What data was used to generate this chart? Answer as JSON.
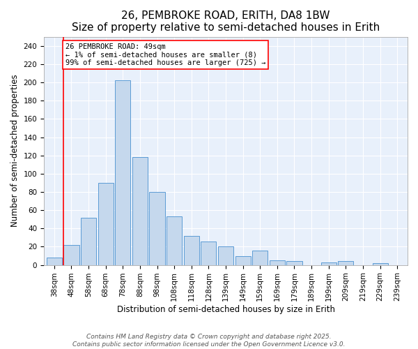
{
  "title": "26, PEMBROKE ROAD, ERITH, DA8 1BW",
  "subtitle": "Size of property relative to semi-detached houses in Erith",
  "xlabel": "Distribution of semi-detached houses by size in Erith",
  "ylabel": "Number of semi-detached properties",
  "categories": [
    "38sqm",
    "48sqm",
    "58sqm",
    "68sqm",
    "78sqm",
    "88sqm",
    "98sqm",
    "108sqm",
    "118sqm",
    "128sqm",
    "139sqm",
    "149sqm",
    "159sqm",
    "169sqm",
    "179sqm",
    "189sqm",
    "199sqm",
    "209sqm",
    "219sqm",
    "229sqm",
    "239sqm"
  ],
  "values": [
    8,
    22,
    52,
    90,
    202,
    118,
    80,
    53,
    32,
    26,
    20,
    10,
    16,
    5,
    4,
    0,
    3,
    4,
    0,
    2,
    0
  ],
  "bar_color": "#c5d8ed",
  "bar_edge_color": "#5b9bd5",
  "red_line_x": 1.0,
  "annotation_text": "26 PEMBROKE ROAD: 49sqm\n← 1% of semi-detached houses are smaller (8)\n99% of semi-detached houses are larger (725) →",
  "ylim": [
    0,
    250
  ],
  "yticks": [
    0,
    20,
    40,
    60,
    80,
    100,
    120,
    140,
    160,
    180,
    200,
    220,
    240
  ],
  "background_color": "#e8f0fb",
  "footer_text": "Contains HM Land Registry data © Crown copyright and database right 2025.\nContains public sector information licensed under the Open Government Licence v3.0.",
  "title_fontsize": 11,
  "subtitle_fontsize": 10,
  "axis_label_fontsize": 8.5,
  "tick_fontsize": 7.5,
  "annotation_fontsize": 7.5,
  "footer_fontsize": 6.5
}
